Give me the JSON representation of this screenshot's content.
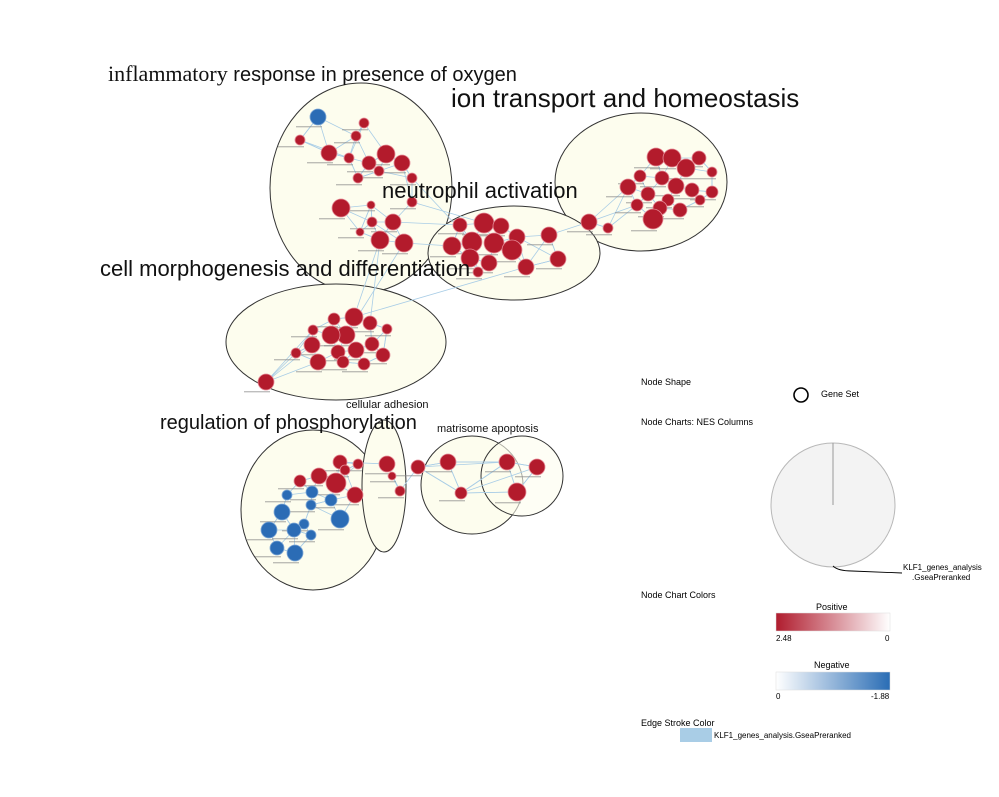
{
  "clusters": [
    {
      "id": "inflammatory",
      "title_serif": "inflammatory",
      "title_rest": " response in presence of oxygen",
      "color": "#fdfdee"
    },
    {
      "id": "ion",
      "title": "ion transport and homeostasis"
    },
    {
      "id": "neutrophil",
      "title": "neutrophil activation"
    },
    {
      "id": "morphogenesis",
      "title": "cell morphogenesis and differentiation"
    },
    {
      "id": "phosphorylation",
      "title": "regulation of phosphorylation"
    },
    {
      "id": "adhesion",
      "title": "cellular adhesion"
    },
    {
      "id": "matrisome",
      "title": "matrisome apoptosis"
    }
  ],
  "legend": {
    "node_shape_label": "Node Shape",
    "gene_set_label": "Gene Set",
    "node_charts_label": "Node Charts: NES Columns",
    "pie_series_label_line1": "KLF1_genes_analysis",
    "pie_series_label_line2": ".GseaPreranked",
    "node_chart_colors_label": "Node Chart Colors",
    "positive": {
      "label": "Positive",
      "min_label": "2.48",
      "max_label": "0",
      "color_start": "#b01c2e",
      "color_end": "#ffffff"
    },
    "negative": {
      "label": "Negative",
      "min_label": "0",
      "max_label": "-1.88",
      "color_start": "#ffffff",
      "color_end": "#2a6db5"
    },
    "edge_stroke_label": "Edge Stroke Color",
    "edge_series_label": "KLF1_genes_analysis.GseaPreranked",
    "edge_color": "#a9cde6"
  },
  "colors": {
    "positive_node": "#b31b2c",
    "negative_node": "#2b6cb5",
    "edge": "#a9cde6",
    "cluster_fill": "#fdfdee",
    "cluster_stroke": "#333333"
  }
}
